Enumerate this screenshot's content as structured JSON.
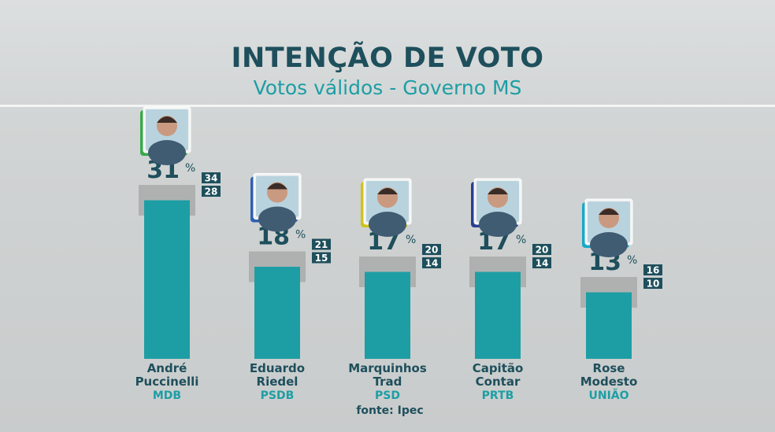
{
  "header": {
    "title": "INTENÇÃO DE VOTO",
    "subtitle": "Votos válidos - Governo MS"
  },
  "source": "fonte: Ipec",
  "percent_sign": "%",
  "colors": {
    "bar": "#1d9ea4",
    "dark_text": "#1e4f5c",
    "accent_text": "#1d9ea4",
    "margin_band": "#a9acac",
    "range_box": "#1e4f5c"
  },
  "chart_data": {
    "type": "bar",
    "title": "INTENÇÃO DE VOTO",
    "subtitle": "Votos válidos - Governo MS",
    "unit": "%",
    "categories": [
      "André Puccinelli",
      "Eduardo Riedel",
      "Marquinhos Trad",
      "Capitão Contar",
      "Rose Modesto"
    ],
    "name_lines": [
      [
        "André",
        "Puccinelli"
      ],
      [
        "Eduardo",
        "Riedel"
      ],
      [
        "Marquinhos",
        "Trad"
      ],
      [
        "Capitão",
        "Contar"
      ],
      [
        "Rose",
        "Modesto"
      ]
    ],
    "parties": [
      "MDB",
      "PSDB",
      "PSD",
      "PRTB",
      "UNIÃO"
    ],
    "party_colors": [
      "#3aa84a",
      "#2f5fb3",
      "#cfc41a",
      "#2b3f8f",
      "#1aa8c8"
    ],
    "values": [
      31,
      18,
      17,
      17,
      13
    ],
    "upper": [
      34,
      21,
      20,
      20,
      16
    ],
    "lower": [
      28,
      15,
      14,
      14,
      10
    ],
    "source": "fonte: Ipec"
  }
}
